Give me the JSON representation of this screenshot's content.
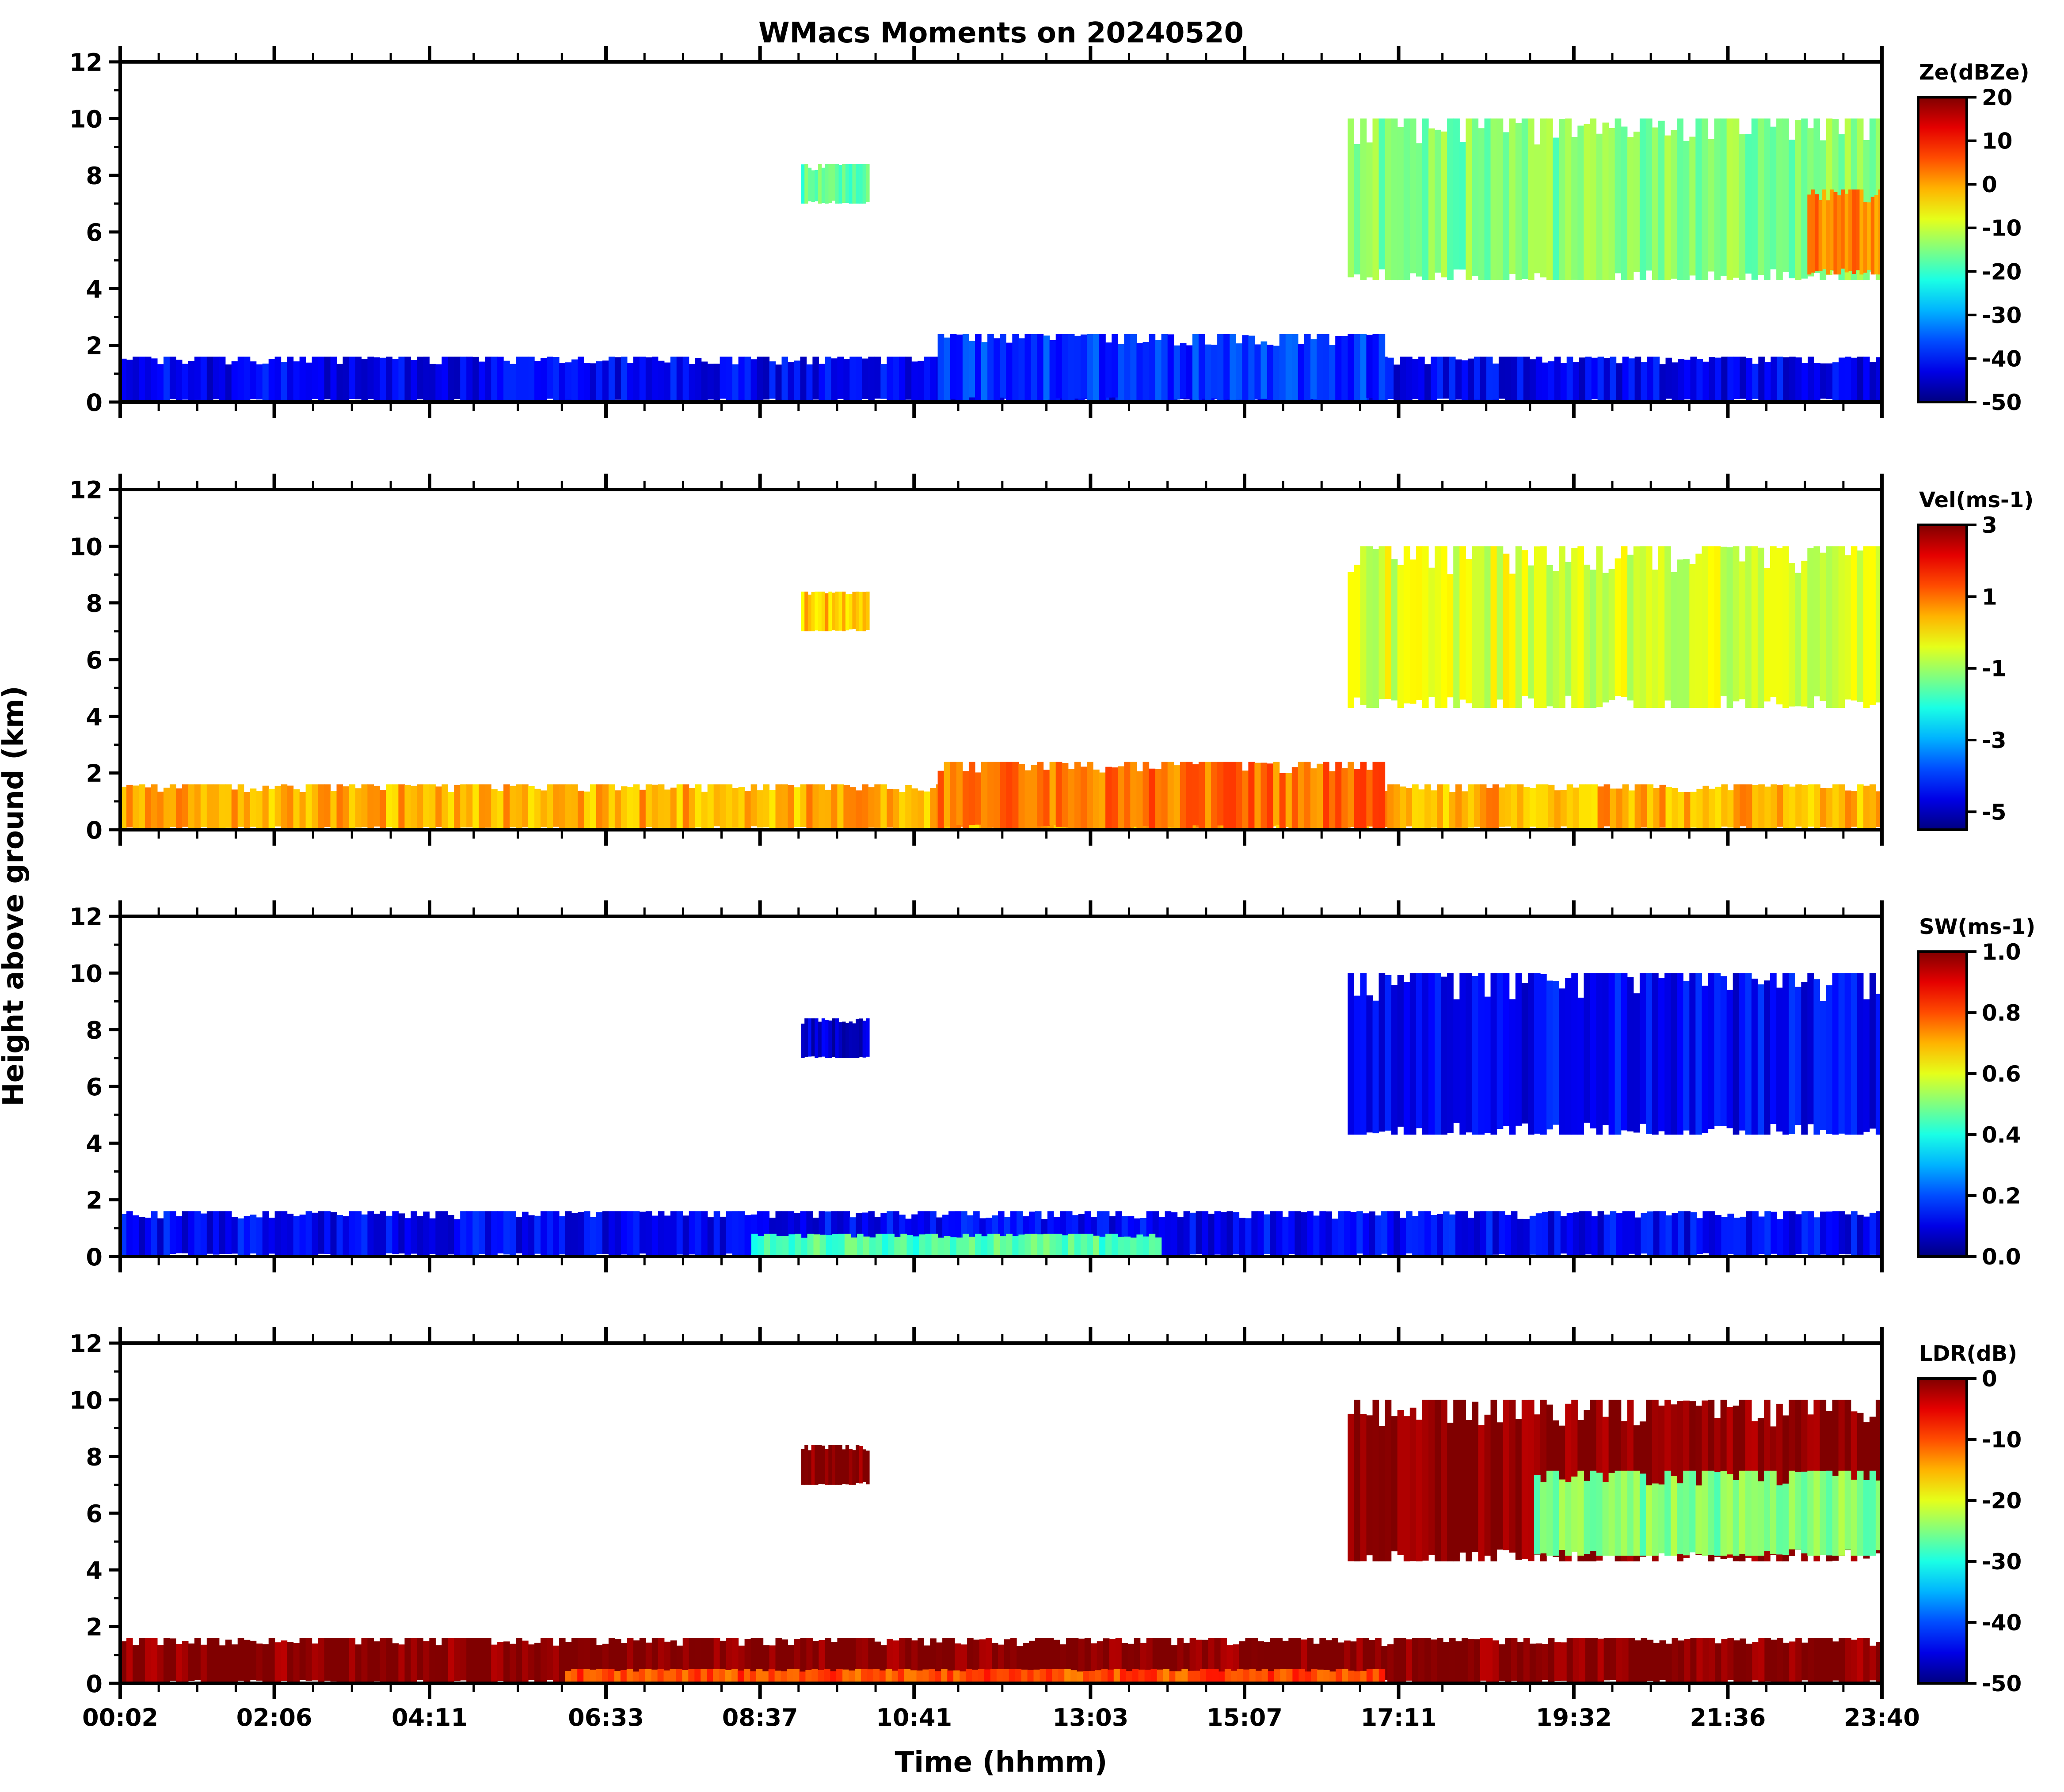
{
  "figure": {
    "title": "WMacs Moments on 20240520",
    "ylabel": "Height above ground (km)",
    "xlabel": "Time (hhmm)"
  },
  "chart_data": [
    {
      "type": "heatmap",
      "moment": "reflectivity",
      "colorbar_label": "Ze(dBZe)",
      "colorbar_ticks": [
        "20",
        "10",
        "0",
        "-10",
        "-20",
        "-30",
        "-40",
        "-50"
      ],
      "crange": [
        -50,
        20
      ],
      "colormap": "jet",
      "x_ticks": [
        "00:02",
        "02:06",
        "04:11",
        "06:33",
        "08:37",
        "10:41",
        "13:03",
        "15:07",
        "17:11",
        "19:32",
        "21:36",
        "23:40"
      ],
      "y_ticks": [
        "0",
        "2",
        "4",
        "6",
        "8",
        "10",
        "12"
      ],
      "ylim": [
        0,
        12
      ],
      "xlim": [
        "00:02",
        "23:40"
      ],
      "features": [
        {
          "name": "boundary layer clutter",
          "t_start": "00:02",
          "t_end": "23:40",
          "z_base": 0,
          "z_top": 1.6,
          "value": -42
        },
        {
          "name": "midday convective layer",
          "t_start": "11:00",
          "t_end": "17:00",
          "z_base": 0,
          "z_top": 2.4,
          "value": -38
        },
        {
          "name": "isolated cloud",
          "t_start": "09:10",
          "t_end": "10:05",
          "z_base": 7.0,
          "z_top": 8.4,
          "value": -18
        },
        {
          "name": "upper cloud deck",
          "t_start": "16:30",
          "t_end": "23:40",
          "z_base": 4.3,
          "z_top": 10.0,
          "value": -15
        },
        {
          "name": "enhanced core",
          "t_start": "22:40",
          "t_end": "23:40",
          "z_base": 4.5,
          "z_top": 7.5,
          "value": 2
        }
      ]
    },
    {
      "type": "heatmap",
      "moment": "doppler velocity",
      "colorbar_label": "Vel(ms-1)",
      "colorbar_ticks": [
        "3",
        "1",
        "-1",
        "-3",
        "-5"
      ],
      "crange": [
        -5.5,
        3
      ],
      "colormap": "jet",
      "x_ticks": [
        "00:02",
        "02:06",
        "04:11",
        "06:33",
        "08:37",
        "10:41",
        "13:03",
        "15:07",
        "17:11",
        "19:32",
        "21:36",
        "23:40"
      ],
      "y_ticks": [
        "0",
        "2",
        "4",
        "6",
        "8",
        "10",
        "12"
      ],
      "ylim": [
        0,
        12
      ],
      "xlim": [
        "00:02",
        "23:40"
      ],
      "features": [
        {
          "name": "boundary layer",
          "t_start": "00:02",
          "t_end": "23:40",
          "z_base": 0,
          "z_top": 1.6,
          "value": 0.5
        },
        {
          "name": "midday convective layer",
          "t_start": "11:00",
          "t_end": "17:00",
          "z_base": 0,
          "z_top": 2.4,
          "value": 1.0
        },
        {
          "name": "isolated cloud",
          "t_start": "09:10",
          "t_end": "10:05",
          "z_base": 7.0,
          "z_top": 8.4,
          "value": 0.3
        },
        {
          "name": "upper cloud deck",
          "t_start": "16:30",
          "t_end": "23:40",
          "z_base": 4.3,
          "z_top": 10.0,
          "value": -0.5
        }
      ]
    },
    {
      "type": "heatmap",
      "moment": "spectrum width",
      "colorbar_label": "SW(ms-1)",
      "colorbar_ticks": [
        "1.0",
        "0.8",
        "0.6",
        "0.4",
        "0.2",
        "0.0"
      ],
      "crange": [
        0,
        1
      ],
      "colormap": "jet",
      "x_ticks": [
        "00:02",
        "02:06",
        "04:11",
        "06:33",
        "08:37",
        "10:41",
        "13:03",
        "15:07",
        "17:11",
        "19:32",
        "21:36",
        "23:40"
      ],
      "y_ticks": [
        "0",
        "2",
        "4",
        "6",
        "8",
        "10",
        "12"
      ],
      "ylim": [
        0,
        12
      ],
      "xlim": [
        "00:02",
        "23:40"
      ],
      "features": [
        {
          "name": "boundary layer",
          "t_start": "00:02",
          "t_end": "23:40",
          "z_base": 0,
          "z_top": 1.6,
          "value": 0.12
        },
        {
          "name": "midday convective layer",
          "t_start": "08:30",
          "t_end": "14:00",
          "z_base": 0,
          "z_top": 0.8,
          "value": 0.45
        },
        {
          "name": "isolated cloud",
          "t_start": "09:10",
          "t_end": "10:05",
          "z_base": 7.0,
          "z_top": 8.4,
          "value": 0.08
        },
        {
          "name": "upper cloud deck",
          "t_start": "16:30",
          "t_end": "23:40",
          "z_base": 4.3,
          "z_top": 10.0,
          "value": 0.12
        }
      ]
    },
    {
      "type": "heatmap",
      "moment": "linear depolarization ratio",
      "colorbar_label": "LDR(dB)",
      "colorbar_ticks": [
        "0",
        "-10",
        "-20",
        "-30",
        "-40",
        "-50"
      ],
      "crange": [
        -50,
        0
      ],
      "colormap": "jet",
      "x_ticks": [
        "00:02",
        "02:06",
        "04:11",
        "06:33",
        "08:37",
        "10:41",
        "13:03",
        "15:07",
        "17:11",
        "19:32",
        "21:36",
        "23:40"
      ],
      "y_ticks": [
        "0",
        "2",
        "4",
        "6",
        "8",
        "10",
        "12"
      ],
      "ylim": [
        0,
        12
      ],
      "xlim": [
        "00:02",
        "23:40"
      ],
      "features": [
        {
          "name": "boundary layer",
          "t_start": "00:02",
          "t_end": "23:40",
          "z_base": 0,
          "z_top": 1.6,
          "value": 0
        },
        {
          "name": "near-surface layer",
          "t_start": "06:00",
          "t_end": "17:00",
          "z_base": 0,
          "z_top": 0.5,
          "value": -10
        },
        {
          "name": "isolated cloud",
          "t_start": "09:10",
          "t_end": "10:05",
          "z_base": 7.0,
          "z_top": 8.4,
          "value": 0
        },
        {
          "name": "upper cloud deck",
          "t_start": "16:30",
          "t_end": "23:40",
          "z_base": 4.3,
          "z_top": 10.0,
          "value": 0
        },
        {
          "name": "deck interior",
          "t_start": "19:00",
          "t_end": "23:40",
          "z_base": 4.5,
          "z_top": 7.5,
          "value": -25
        }
      ]
    }
  ]
}
